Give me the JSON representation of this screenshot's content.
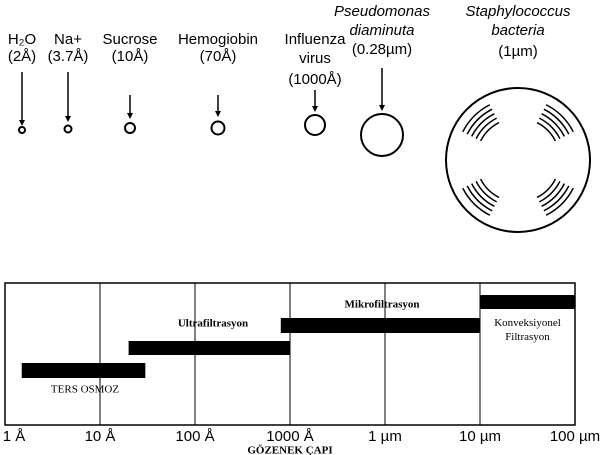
{
  "particles": [
    {
      "name": [
        "H₂O"
      ],
      "size": "(2Å)"
    },
    {
      "name": [
        "Na+"
      ],
      "size": "(3.7Å)"
    },
    {
      "name": [
        "Sucrose"
      ],
      "size": "(10Å)"
    },
    {
      "name": [
        "Hemogiobin"
      ],
      "size": "(70Å)"
    },
    {
      "name": [
        "Influenza",
        "virus"
      ],
      "size": "(1000Å)"
    },
    {
      "name": [
        "Pseudomonas",
        "diaminuta"
      ],
      "size": "(0.28µm)"
    },
    {
      "name": [
        "Staphylococcus",
        "bacteria"
      ],
      "size": "(1µm)"
    }
  ],
  "chart_data": {
    "type": "range_bar",
    "xlabel": "GÖZENEK ÇAPI",
    "xscale": "log",
    "xlim": [
      1,
      1000000
    ],
    "xticks": [
      {
        "value": 1,
        "label": "1 Å"
      },
      {
        "value": 10,
        "label": "10 Å"
      },
      {
        "value": 100,
        "label": "100 Å"
      },
      {
        "value": 1000,
        "label": "1000 Å"
      },
      {
        "value": 10000,
        "label": "1 µm"
      },
      {
        "value": 100000,
        "label": "10 µm"
      },
      {
        "value": 1000000,
        "label": "100 µm"
      }
    ],
    "grid": true,
    "color": "#000000",
    "series": [
      {
        "name": "TERS OSMOZ",
        "values": [
          1.5,
          30
        ]
      },
      {
        "name": "Ultrafiltrasyon",
        "values": [
          20,
          1000
        ]
      },
      {
        "name": "Mikrofiltrasyon",
        "values": [
          800,
          100000
        ]
      },
      {
        "name": "Konveksiyonel Filtrasyon",
        "values": [
          100000,
          1000000
        ]
      }
    ]
  }
}
